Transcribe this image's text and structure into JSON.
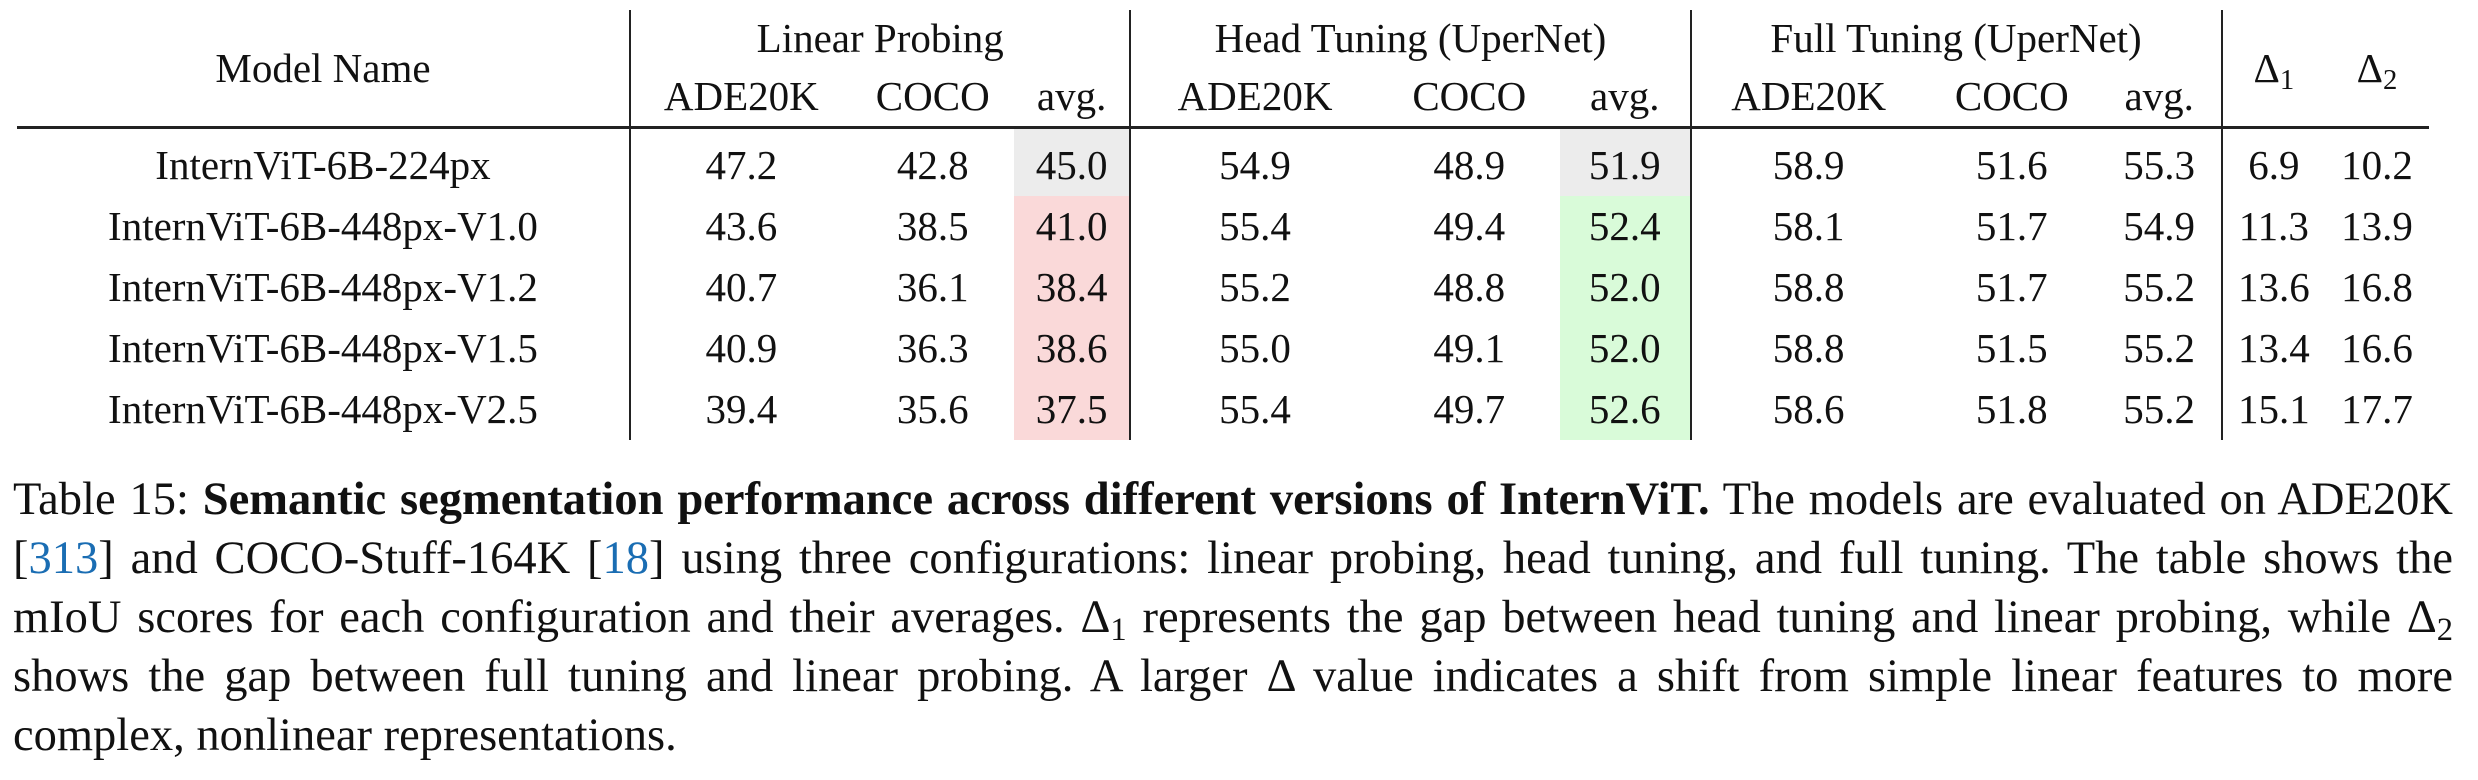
{
  "table": {
    "model_header": "Model Name",
    "groups": [
      {
        "label": "Linear Probing",
        "cols": [
          "ADE20K",
          "COCO",
          "avg."
        ]
      },
      {
        "label": "Head Tuning (UperNet)",
        "cols": [
          "ADE20K",
          "COCO",
          "avg."
        ]
      },
      {
        "label": "Full Tuning (UperNet)",
        "cols": [
          "ADE20K",
          "COCO",
          "avg."
        ]
      }
    ],
    "delta_symbol": "Δ",
    "delta1_sub": "1",
    "delta2_sub": "2",
    "rows": [
      {
        "model": "InternViT-6B-224px",
        "cells": [
          "47.2",
          "42.8",
          "45.0",
          "54.9",
          "48.9",
          "51.9",
          "58.9",
          "51.6",
          "55.3",
          "6.9",
          "10.2"
        ]
      },
      {
        "model": "InternViT-6B-448px-V1.0",
        "cells": [
          "43.6",
          "38.5",
          "41.0",
          "55.4",
          "49.4",
          "52.4",
          "58.1",
          "51.7",
          "54.9",
          "11.3",
          "13.9"
        ]
      },
      {
        "model": "InternViT-6B-448px-V1.2",
        "cells": [
          "40.7",
          "36.1",
          "38.4",
          "55.2",
          "48.8",
          "52.0",
          "58.8",
          "51.7",
          "55.2",
          "13.6",
          "16.8"
        ]
      },
      {
        "model": "InternViT-6B-448px-V1.5",
        "cells": [
          "40.9",
          "36.3",
          "38.6",
          "55.0",
          "49.1",
          "52.0",
          "58.8",
          "51.5",
          "55.2",
          "13.4",
          "16.6"
        ]
      },
      {
        "model": "InternViT-6B-448px-V2.5",
        "cells": [
          "39.4",
          "35.6",
          "37.5",
          "55.4",
          "49.7",
          "52.6",
          "58.6",
          "51.8",
          "55.2",
          "15.1",
          "17.7"
        ]
      }
    ],
    "highlight_colors": {
      "neutral": "#ececec",
      "lower": "#fad9d9",
      "higher": "#d9fbd9"
    }
  },
  "caption": {
    "label": "Table 15:",
    "title": "Semantic segmentation performance across different versions of InternViT.",
    "text1": "The models are evaluated on ADE20K [",
    "cite1": "313",
    "text2": "] and COCO-Stuff-164K [",
    "cite2": "18",
    "text3": "] using three configurations: linear probing, head tuning, and full tuning. The table shows the mIoU scores for each configuration and their averages.",
    "delta1_sym": "Δ",
    "delta1_sub": "1",
    "text4": "represents the gap between head tuning and linear probing, while",
    "delta2_sym": "Δ",
    "delta2_sub": "2",
    "text5": "shows the gap between full tuning and linear probing. A larger",
    "delta3_sym": "Δ",
    "text6": "value indicates a shift from simple linear features to more complex, nonlinear representations.",
    "cite_color": "#1a6db3"
  }
}
